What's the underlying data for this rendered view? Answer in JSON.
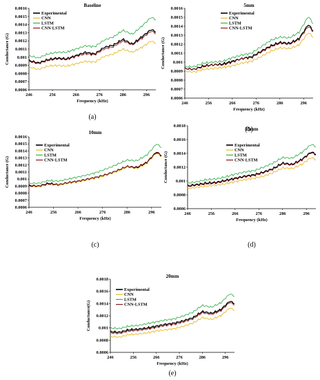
{
  "chart_data": [
    {
      "type": "line",
      "panel_label": "(a)",
      "title": "Baseline",
      "xlabel": "Frequency (kHz)",
      "ylabel": "Conductance (G)",
      "xlim": [
        246,
        300
      ],
      "ylim": [
        0.0006,
        0.0016
      ],
      "x_ticks": [
        "246",
        "256",
        "266",
        "276",
        "286",
        "296"
      ],
      "y_ticks": [
        "0.0006",
        "0.0007",
        "0.0008",
        "0.0009",
        "0.001",
        "0.0011",
        "0.0012",
        "0.0013",
        "0.0014",
        "0.0015",
        "0.0016"
      ],
      "legend_position": "top-left",
      "x": [
        246,
        250,
        254,
        258,
        262,
        266,
        270,
        274,
        278,
        282,
        286,
        290,
        294,
        298,
        300
      ],
      "series": [
        {
          "name": "Experimental",
          "color": "#000000",
          "values": [
            0.00096,
            0.00093,
            0.00097,
            0.00099,
            0.00098,
            0.00102,
            0.00106,
            0.00104,
            0.00112,
            0.00115,
            0.00122,
            0.00116,
            0.00125,
            0.00134,
            0.00131
          ]
        },
        {
          "name": "CNN",
          "color": "#e8b923",
          "values": [
            0.00088,
            0.00085,
            0.00089,
            0.0009,
            0.00089,
            0.00092,
            0.00095,
            0.00094,
            0.00101,
            0.00104,
            0.0011,
            0.00106,
            0.00112,
            0.0012,
            0.00117
          ]
        },
        {
          "name": "LSTM",
          "color": "#3cae53",
          "values": [
            0.00102,
            0.00099,
            0.00104,
            0.00106,
            0.00106,
            0.0011,
            0.00114,
            0.00113,
            0.00121,
            0.00125,
            0.00133,
            0.00128,
            0.00138,
            0.00149,
            0.00146
          ]
        },
        {
          "name": "CNN-LSTM",
          "color": "#8b1a1a",
          "values": [
            0.00095,
            0.00092,
            0.00096,
            0.00098,
            0.00097,
            0.00101,
            0.00104,
            0.00103,
            0.0011,
            0.00113,
            0.0012,
            0.00115,
            0.00123,
            0.00132,
            0.00129
          ]
        }
      ]
    },
    {
      "type": "line",
      "panel_label": "(b)",
      "title": "5mm",
      "xlabel": "Frequency (kHz)",
      "ylabel": "Conductance (G)",
      "xlim": [
        246,
        300
      ],
      "ylim": [
        0.0006,
        0.0016
      ],
      "x_ticks": [
        "246",
        "256",
        "266",
        "276",
        "286",
        "296"
      ],
      "y_ticks": [
        "0.0006",
        "0.0007",
        "0.0008",
        "0.0009",
        "0.001",
        "0.0011",
        "0.0012",
        "0.0013",
        "0.0014",
        "0.0015",
        "0.0016"
      ],
      "legend_position": "top-left",
      "x": [
        246,
        250,
        254,
        258,
        262,
        266,
        270,
        274,
        278,
        282,
        286,
        290,
        294,
        298,
        300
      ],
      "series": [
        {
          "name": "Experimental",
          "color": "#000000",
          "values": [
            0.00093,
            0.00092,
            0.00096,
            0.00097,
            0.00098,
            0.00101,
            0.00104,
            0.00106,
            0.00112,
            0.00118,
            0.00122,
            0.00121,
            0.00126,
            0.00142,
            0.00135
          ]
        },
        {
          "name": "CNN",
          "color": "#e8b923",
          "values": [
            0.0009,
            0.00089,
            0.00092,
            0.00093,
            0.00094,
            0.00096,
            0.00099,
            0.00101,
            0.00106,
            0.00112,
            0.00116,
            0.00115,
            0.00119,
            0.00133,
            0.00128
          ]
        },
        {
          "name": "LSTM",
          "color": "#3cae53",
          "values": [
            0.00095,
            0.00095,
            0.00099,
            0.001,
            0.00101,
            0.00105,
            0.00108,
            0.0011,
            0.00117,
            0.00124,
            0.00128,
            0.00127,
            0.00133,
            0.00151,
            0.00143
          ]
        },
        {
          "name": "CNN-LSTM",
          "color": "#8b1a1a",
          "values": [
            0.00093,
            0.00092,
            0.00095,
            0.00097,
            0.00097,
            0.001,
            0.00104,
            0.00105,
            0.00111,
            0.00117,
            0.00121,
            0.0012,
            0.00125,
            0.0014,
            0.00134
          ]
        }
      ]
    },
    {
      "type": "line",
      "panel_label": "(c)",
      "title": "10mm",
      "xlabel": "Frequency (kHz)",
      "ylabel": "Conductance (G)",
      "xlim": [
        246,
        300
      ],
      "ylim": [
        0.0006,
        0.0016
      ],
      "x_ticks": [
        "246",
        "256",
        "266",
        "276",
        "286",
        "296"
      ],
      "y_ticks": [
        "0.0006",
        "0.0007",
        "0.0008",
        "0.0009",
        "0.001",
        "0.0011",
        "0.0012",
        "0.0013",
        "0.0014",
        "0.0015",
        "0.0016"
      ],
      "legend_position": "top-left",
      "x": [
        246,
        250,
        254,
        258,
        262,
        266,
        270,
        274,
        278,
        282,
        286,
        290,
        294,
        298,
        300
      ],
      "series": [
        {
          "name": "Experimental",
          "color": "#000000",
          "values": [
            0.00091,
            0.0009,
            0.00094,
            0.00092,
            0.00095,
            0.00097,
            0.001,
            0.00103,
            0.00107,
            0.00112,
            0.00118,
            0.00116,
            0.00123,
            0.00138,
            0.00133
          ]
        },
        {
          "name": "CNN",
          "color": "#e8b923",
          "values": [
            0.0009,
            0.00089,
            0.00093,
            0.00091,
            0.00094,
            0.00096,
            0.00099,
            0.00102,
            0.00106,
            0.00111,
            0.00117,
            0.00115,
            0.00122,
            0.00137,
            0.00132
          ]
        },
        {
          "name": "LSTM",
          "color": "#3cae53",
          "values": [
            0.00094,
            0.00094,
            0.00098,
            0.00097,
            0.001,
            0.00103,
            0.00106,
            0.0011,
            0.00115,
            0.00121,
            0.00127,
            0.00126,
            0.00134,
            0.0015,
            0.00145
          ]
        },
        {
          "name": "CNN-LSTM",
          "color": "#8b1a1a",
          "values": [
            0.0009,
            0.0009,
            0.00093,
            0.00092,
            0.00095,
            0.00097,
            0.001,
            0.00103,
            0.00107,
            0.00112,
            0.00118,
            0.00117,
            0.00124,
            0.00139,
            0.00134
          ]
        }
      ]
    },
    {
      "type": "line",
      "panel_label": "(d)",
      "title": "15mm",
      "xlabel": "Frequency (kHz)",
      "ylabel": "Conductance (G)",
      "xlim": [
        246,
        300
      ],
      "ylim": [
        0.0006,
        0.0018
      ],
      "x_ticks": [
        "246",
        "256",
        "266",
        "276",
        "286",
        "296"
      ],
      "y_ticks": [
        "0.0006",
        "0.0008",
        "0.001",
        "0.0012",
        "0.0014",
        "0.0016",
        "0.0018"
      ],
      "legend_position": "top-right",
      "x": [
        246,
        250,
        254,
        258,
        262,
        266,
        270,
        274,
        278,
        282,
        286,
        290,
        294,
        298,
        300
      ],
      "series": [
        {
          "name": "Experimental",
          "color": "#000000",
          "values": [
            0.00093,
            0.00095,
            0.00097,
            0.00098,
            0.00101,
            0.00104,
            0.00107,
            0.00109,
            0.00113,
            0.00118,
            0.00126,
            0.00124,
            0.00131,
            0.00142,
            0.00139
          ]
        },
        {
          "name": "CNN",
          "color": "#e8b923",
          "values": [
            0.00089,
            0.00091,
            0.00093,
            0.00094,
            0.00096,
            0.00099,
            0.00102,
            0.00104,
            0.00107,
            0.00112,
            0.00119,
            0.00118,
            0.00124,
            0.00134,
            0.00131
          ]
        },
        {
          "name": "LSTM",
          "color": "#3cae53",
          "values": [
            0.00097,
            0.00099,
            0.00102,
            0.00103,
            0.00106,
            0.0011,
            0.00113,
            0.00115,
            0.0012,
            0.00126,
            0.00134,
            0.00133,
            0.00141,
            0.00153,
            0.0015
          ]
        },
        {
          "name": "CNN-LSTM",
          "color": "#8b1a1a",
          "values": [
            0.00092,
            0.00094,
            0.00096,
            0.00097,
            0.001,
            0.00103,
            0.00106,
            0.00108,
            0.00112,
            0.00117,
            0.00125,
            0.00123,
            0.0013,
            0.00141,
            0.00138
          ]
        }
      ]
    },
    {
      "type": "line",
      "panel_label": "(e)",
      "title": "20mm",
      "xlabel": "Frequency (kHz)",
      "ylabel": "Conductance(G)",
      "xlim": [
        246,
        300
      ],
      "ylim": [
        0.0006,
        0.0018
      ],
      "x_ticks": [
        "246",
        "256",
        "266",
        "276",
        "286",
        "296"
      ],
      "y_ticks": [
        "0.0006",
        "0.0008",
        "0.001",
        "0.0012",
        "0.0014",
        "0.0016",
        "0.0018"
      ],
      "legend_position": "top-left",
      "x": [
        246,
        250,
        254,
        258,
        262,
        266,
        270,
        274,
        278,
        282,
        286,
        290,
        294,
        298,
        300
      ],
      "series": [
        {
          "name": "Experimental",
          "color": "#000000",
          "values": [
            0.00094,
            0.00093,
            0.00097,
            0.00098,
            0.001,
            0.00103,
            0.00106,
            0.00108,
            0.00112,
            0.00117,
            0.00127,
            0.00124,
            0.0013,
            0.00144,
            0.0014
          ]
        },
        {
          "name": "CNN",
          "color": "#e8b923",
          "values": [
            0.00086,
            0.00085,
            0.00089,
            0.0009,
            0.00092,
            0.00095,
            0.00097,
            0.00099,
            0.00103,
            0.00108,
            0.00117,
            0.00114,
            0.0012,
            0.00133,
            0.00129
          ]
        },
        {
          "name": "LSTM",
          "color": "#3cae53",
          "values": [
            0.001,
            0.00099,
            0.00103,
            0.00104,
            0.00107,
            0.0011,
            0.00113,
            0.00115,
            0.0012,
            0.00126,
            0.00137,
            0.00134,
            0.00141,
            0.00156,
            0.00152
          ]
        },
        {
          "name": "CNN-LSTM",
          "color": "#8b1a1a",
          "values": [
            0.00092,
            0.00091,
            0.00095,
            0.00096,
            0.00098,
            0.00101,
            0.00104,
            0.00106,
            0.0011,
            0.00115,
            0.00125,
            0.00122,
            0.00128,
            0.00142,
            0.00138
          ]
        }
      ]
    }
  ]
}
